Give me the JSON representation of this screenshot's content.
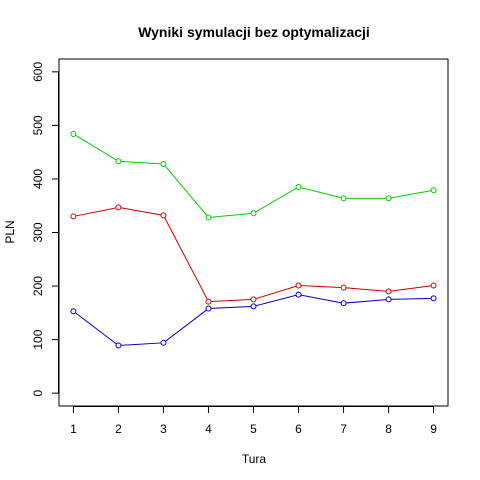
{
  "chart_data": {
    "type": "line",
    "title": "Wyniki symulacji bez optymalizacji",
    "xlabel": "Tura",
    "ylabel": "PLN",
    "x": [
      1,
      2,
      3,
      4,
      5,
      6,
      7,
      8,
      9
    ],
    "xlim": [
      0.68,
      9.32
    ],
    "ylim": [
      -24,
      624
    ],
    "yticks": [
      0,
      100,
      200,
      300,
      400,
      500,
      600
    ],
    "grid": false,
    "legend": "none",
    "series": [
      {
        "color": "#00CD00",
        "values": [
          484,
          433,
          428,
          328,
          336,
          385,
          364,
          364,
          379
        ]
      },
      {
        "color": "#CD0000",
        "values": [
          330,
          347,
          332,
          171,
          175,
          201,
          197,
          190,
          201
        ]
      },
      {
        "color": "#0000CD",
        "values": [
          153,
          89,
          94,
          158,
          162,
          184,
          168,
          175,
          177
        ]
      }
    ]
  }
}
